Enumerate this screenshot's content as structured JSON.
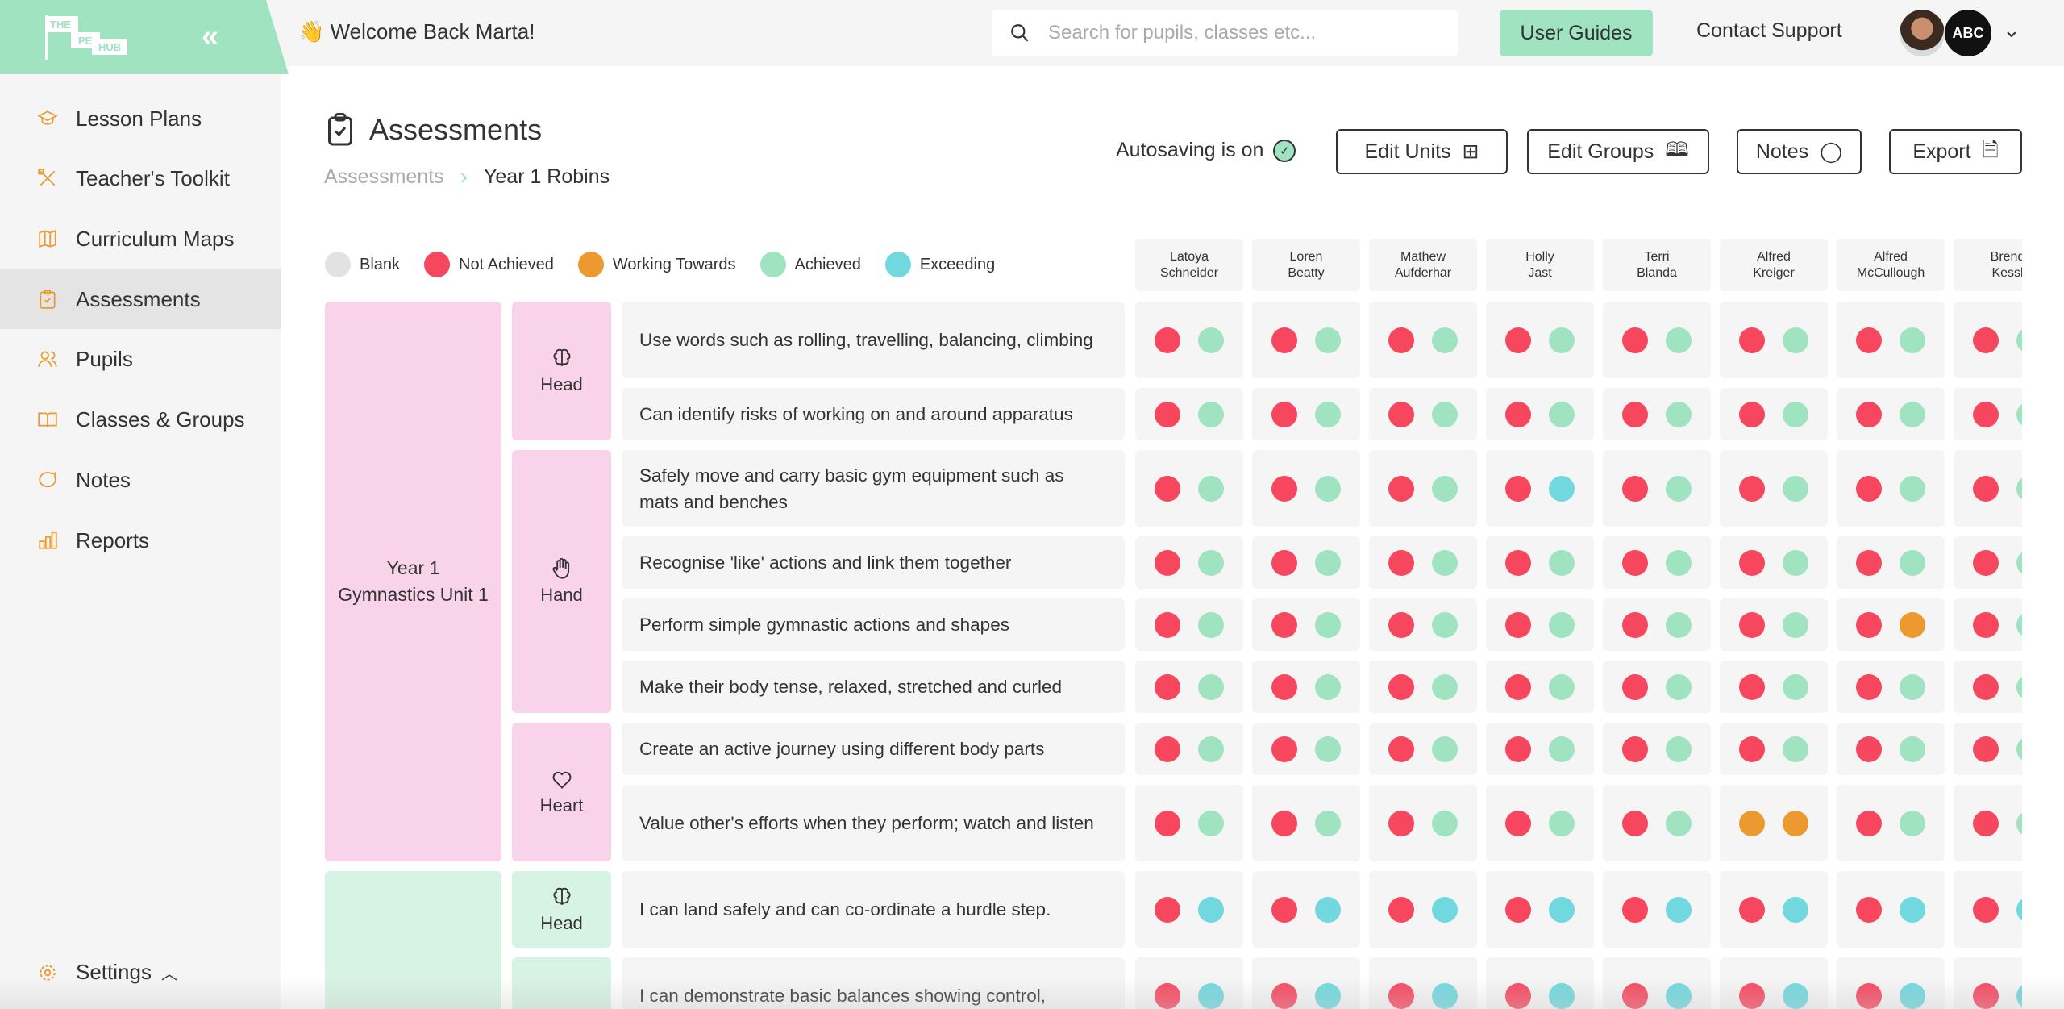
{
  "header": {
    "logo_text": [
      "THE",
      "PE",
      "HUB"
    ],
    "welcome": "👋 Welcome Back Marta!",
    "search_placeholder": "Search for pupils, classes etc...",
    "user_guides": "User Guides",
    "contact_support": "Contact Support",
    "school_badge": "ABC"
  },
  "sidebar": {
    "items": [
      {
        "label": "Lesson Plans",
        "icon": "graduation-cap-icon"
      },
      {
        "label": "Teacher's Toolkit",
        "icon": "tools-icon"
      },
      {
        "label": "Curriculum Maps",
        "icon": "map-icon"
      },
      {
        "label": "Assessments",
        "icon": "clipboard-check-icon",
        "active": true
      },
      {
        "label": "Pupils",
        "icon": "users-icon"
      },
      {
        "label": "Classes & Groups",
        "icon": "book-open-icon"
      },
      {
        "label": "Notes",
        "icon": "chat-bubble-icon"
      },
      {
        "label": "Reports",
        "icon": "bar-chart-icon"
      }
    ],
    "settings": "Settings"
  },
  "page": {
    "title": "Assessments",
    "breadcrumb": {
      "parent": "Assessments",
      "current": "Year 1 Robins"
    },
    "autosave": "Autosaving is on",
    "buttons": {
      "edit_units": "Edit Units",
      "edit_groups": "Edit Groups",
      "notes": "Notes",
      "export": "Export"
    }
  },
  "legend": [
    {
      "code": "B",
      "label": "Blank",
      "color": "#e2e2e2"
    },
    {
      "code": "N",
      "label": "Not Achieved",
      "color": "#f7475f"
    },
    {
      "code": "W",
      "label": "Working Towards",
      "color": "#ec9a30"
    },
    {
      "code": "A",
      "label": "Achieved",
      "color": "#9fe3c1"
    },
    {
      "code": "E",
      "label": "Exceeding",
      "color": "#70d8de"
    }
  ],
  "pupils": [
    [
      "Latoya",
      "Schneider"
    ],
    [
      "Loren",
      "Beatty"
    ],
    [
      "Mathew",
      "Aufderhar"
    ],
    [
      "Holly",
      "Jast"
    ],
    [
      "Terri",
      "Blanda"
    ],
    [
      "Alfred",
      "Kreiger"
    ],
    [
      "Alfred",
      "McCullough"
    ],
    [
      "Brend",
      "Kessl"
    ]
  ],
  "units": [
    {
      "label": "Year 1 Gymnastics Unit 1",
      "color": "#f9d3ea",
      "categories": [
        {
          "label": "Head",
          "icon": "brain-icon",
          "rows": [
            {
              "text": "Use words such as rolling, travelling, balancing, climbing",
              "cells": [
                [
                  "N",
                  "A"
                ],
                [
                  "N",
                  "A"
                ],
                [
                  "N",
                  "A"
                ],
                [
                  "N",
                  "A"
                ],
                [
                  "N",
                  "A"
                ],
                [
                  "N",
                  "A"
                ],
                [
                  "N",
                  "A"
                ],
                [
                  "N",
                  "A"
                ]
              ]
            },
            {
              "text": "Can identify risks of working on and around apparatus",
              "cells": [
                [
                  "N",
                  "A"
                ],
                [
                  "N",
                  "A"
                ],
                [
                  "N",
                  "A"
                ],
                [
                  "N",
                  "A"
                ],
                [
                  "N",
                  "A"
                ],
                [
                  "N",
                  "A"
                ],
                [
                  "N",
                  "A"
                ],
                [
                  "N",
                  "A"
                ]
              ]
            }
          ]
        },
        {
          "label": "Hand",
          "icon": "hand-icon",
          "rows": [
            {
              "text": "Safely move and carry basic gym equipment such as mats and benches",
              "cells": [
                [
                  "N",
                  "A"
                ],
                [
                  "N",
                  "A"
                ],
                [
                  "N",
                  "A"
                ],
                [
                  "N",
                  "E"
                ],
                [
                  "N",
                  "A"
                ],
                [
                  "N",
                  "A"
                ],
                [
                  "N",
                  "A"
                ],
                [
                  "N",
                  "A"
                ]
              ]
            },
            {
              "text": "Recognise 'like' actions and link them together",
              "cells": [
                [
                  "N",
                  "A"
                ],
                [
                  "N",
                  "A"
                ],
                [
                  "N",
                  "A"
                ],
                [
                  "N",
                  "A"
                ],
                [
                  "N",
                  "A"
                ],
                [
                  "N",
                  "A"
                ],
                [
                  "N",
                  "A"
                ],
                [
                  "N",
                  "A"
                ]
              ]
            },
            {
              "text": "Perform simple gymnastic actions and shapes",
              "cells": [
                [
                  "N",
                  "A"
                ],
                [
                  "N",
                  "A"
                ],
                [
                  "N",
                  "A"
                ],
                [
                  "N",
                  "A"
                ],
                [
                  "N",
                  "A"
                ],
                [
                  "N",
                  "A"
                ],
                [
                  "N",
                  "W"
                ],
                [
                  "N",
                  "A"
                ]
              ]
            },
            {
              "text": "Make their body tense, relaxed, stretched and curled",
              "cells": [
                [
                  "N",
                  "A"
                ],
                [
                  "N",
                  "A"
                ],
                [
                  "N",
                  "A"
                ],
                [
                  "N",
                  "A"
                ],
                [
                  "N",
                  "A"
                ],
                [
                  "N",
                  "A"
                ],
                [
                  "N",
                  "A"
                ],
                [
                  "N",
                  "A"
                ]
              ]
            }
          ]
        },
        {
          "label": "Heart",
          "icon": "heart-icon",
          "rows": [
            {
              "text": "Create an active journey using different body parts",
              "cells": [
                [
                  "N",
                  "A"
                ],
                [
                  "N",
                  "A"
                ],
                [
                  "N",
                  "A"
                ],
                [
                  "N",
                  "A"
                ],
                [
                  "N",
                  "A"
                ],
                [
                  "N",
                  "A"
                ],
                [
                  "N",
                  "A"
                ],
                [
                  "N",
                  "A"
                ]
              ]
            },
            {
              "text": "Value other's efforts when they perform; watch and listen",
              "cells": [
                [
                  "N",
                  "A"
                ],
                [
                  "N",
                  "A"
                ],
                [
                  "N",
                  "A"
                ],
                [
                  "N",
                  "A"
                ],
                [
                  "N",
                  "A"
                ],
                [
                  "W",
                  "W"
                ],
                [
                  "N",
                  "A"
                ],
                [
                  "N",
                  "A"
                ]
              ]
            }
          ]
        }
      ]
    },
    {
      "label": "",
      "color": "#d7f3e4",
      "categories": [
        {
          "label": "Head",
          "icon": "brain-icon",
          "rows": [
            {
              "text": "I can land safely and can co-ordinate a hurdle step.",
              "cells": [
                [
                  "N",
                  "E"
                ],
                [
                  "N",
                  "E"
                ],
                [
                  "N",
                  "E"
                ],
                [
                  "N",
                  "E"
                ],
                [
                  "N",
                  "E"
                ],
                [
                  "N",
                  "E"
                ],
                [
                  "N",
                  "E"
                ],
                [
                  "N",
                  "E"
                ]
              ]
            }
          ]
        },
        {
          "label": "",
          "icon": "",
          "rows": [
            {
              "text": "I can demonstrate basic balances showing control,",
              "cells": [
                [
                  "N",
                  "E"
                ],
                [
                  "N",
                  "E"
                ],
                [
                  "N",
                  "E"
                ],
                [
                  "N",
                  "E"
                ],
                [
                  "N",
                  "E"
                ],
                [
                  "N",
                  "E"
                ],
                [
                  "N",
                  "E"
                ],
                [
                  "N",
                  "E"
                ]
              ]
            }
          ]
        }
      ]
    }
  ]
}
